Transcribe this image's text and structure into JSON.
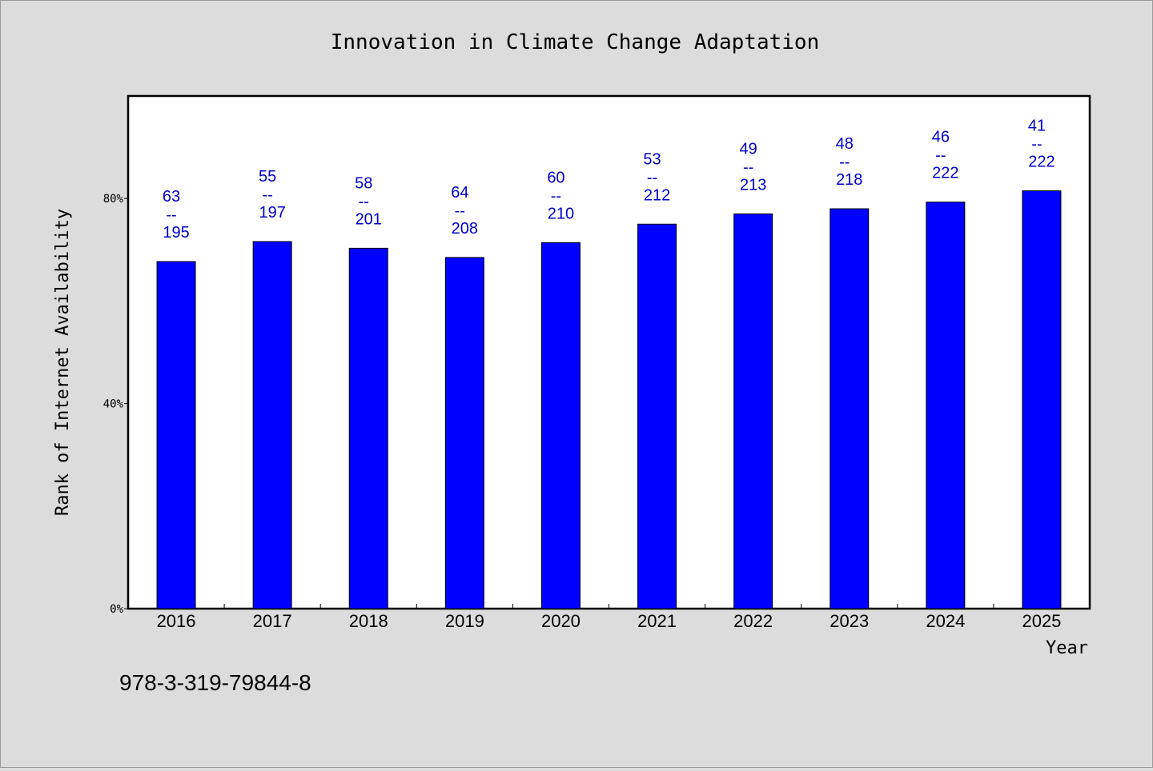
{
  "chart_data": {
    "type": "bar",
    "title": "Innovation in Climate Change Adaptation",
    "xlabel": "Year",
    "ylabel": "Rank of Internet Availability",
    "categories": [
      "2016",
      "2017",
      "2018",
      "2019",
      "2020",
      "2021",
      "2022",
      "2023",
      "2024",
      "2025"
    ],
    "values": [
      0.677,
      0.716,
      0.703,
      0.685,
      0.714,
      0.75,
      0.77,
      0.78,
      0.793,
      0.815
    ],
    "data_labels": [
      {
        "rank": "63",
        "sep": "--",
        "total": "195"
      },
      {
        "rank": "55",
        "sep": "--",
        "total": "197"
      },
      {
        "rank": "58",
        "sep": "--",
        "total": "201"
      },
      {
        "rank": "64",
        "sep": "--",
        "total": "208"
      },
      {
        "rank": "60",
        "sep": "--",
        "total": "210"
      },
      {
        "rank": "53",
        "sep": "--",
        "total": "212"
      },
      {
        "rank": "49",
        "sep": "--",
        "total": "213"
      },
      {
        "rank": "48",
        "sep": "--",
        "total": "218"
      },
      {
        "rank": "46",
        "sep": "--",
        "total": "222"
      },
      {
        "rank": "41",
        "sep": "--",
        "total": "222"
      }
    ],
    "yticks": [
      0,
      0.4,
      0.8
    ],
    "ytick_labels": [
      "0%",
      "40%",
      "80%"
    ],
    "ylim": [
      0,
      1
    ],
    "grid": false,
    "bar_color": "#0000ff",
    "label_color": "#0000c8"
  },
  "footer": {
    "isbn": "978-3-319-79844-8"
  }
}
